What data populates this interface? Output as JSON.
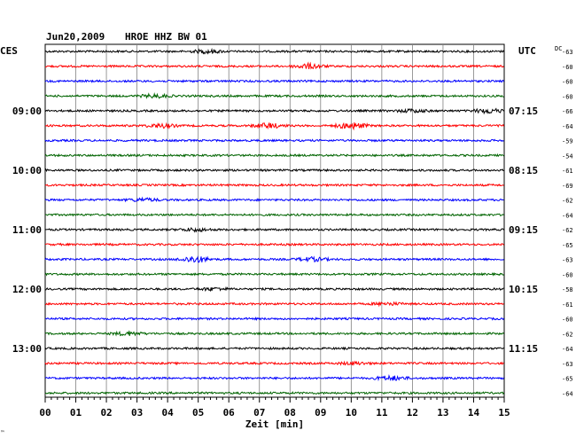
{
  "header": {
    "date": "Jun20,2009",
    "station": "HROE HHZ BW 01",
    "left_zone": "CES",
    "right_zone": "UTC",
    "dc_label": "DC"
  },
  "footer": {
    "xlabel": "Zeit [min]",
    "corner_mark": "™"
  },
  "colors": {
    "black": "#000000",
    "red": "#ff0000",
    "blue": "#0000ff",
    "green": "#006400",
    "grid": "#808080"
  },
  "chart_data": {
    "type": "line",
    "title": "Jun20,2009  HROE HHZ BW 01",
    "xlabel": "Zeit [min]",
    "x_range": [
      0,
      15
    ],
    "x_ticks": [
      "00",
      "01",
      "02",
      "03",
      "04",
      "05",
      "06",
      "07",
      "08",
      "09",
      "10",
      "11",
      "12",
      "13",
      "14",
      "15"
    ],
    "grid": true,
    "left_hour_labels": [
      "09:00",
      "10:00",
      "11:00",
      "12:00",
      "13:00"
    ],
    "right_hour_labels": [
      "07:15",
      "08:15",
      "09:15",
      "10:15",
      "11:15"
    ],
    "trace_colors": [
      "black",
      "red",
      "blue",
      "green",
      "black",
      "red",
      "blue",
      "green",
      "black",
      "red",
      "blue",
      "green",
      "black",
      "red",
      "blue",
      "green",
      "black",
      "red",
      "blue",
      "green",
      "black",
      "red",
      "blue",
      "green"
    ],
    "dc_offsets": [
      -63,
      -60,
      -60,
      -60,
      -66,
      -64,
      -59,
      -54,
      -61,
      -69,
      -62,
      -64,
      -62,
      -65,
      -63,
      -60,
      -58,
      -61,
      -60,
      -62,
      -64,
      -63,
      -65,
      -64
    ],
    "events": [
      {
        "trace": 0,
        "minute": 5.3,
        "amp": 1.8
      },
      {
        "trace": 1,
        "minute": 8.6,
        "amp": 2.6
      },
      {
        "trace": 3,
        "minute": 3.6,
        "amp": 1.8
      },
      {
        "trace": 4,
        "minute": 12.0,
        "amp": 1.6
      },
      {
        "trace": 4,
        "minute": 14.5,
        "amp": 2.4
      },
      {
        "trace": 5,
        "minute": 3.8,
        "amp": 2.0
      },
      {
        "trace": 5,
        "minute": 7.3,
        "amp": 2.6
      },
      {
        "trace": 5,
        "minute": 10.0,
        "amp": 3.4
      },
      {
        "trace": 10,
        "minute": 3.2,
        "amp": 1.6
      },
      {
        "trace": 12,
        "minute": 4.9,
        "amp": 1.6
      },
      {
        "trace": 14,
        "minute": 4.9,
        "amp": 3.4
      },
      {
        "trace": 14,
        "minute": 8.7,
        "amp": 2.0
      },
      {
        "trace": 16,
        "minute": 5.5,
        "amp": 1.4
      },
      {
        "trace": 17,
        "minute": 11.2,
        "amp": 1.4
      },
      {
        "trace": 19,
        "minute": 2.7,
        "amp": 1.8
      },
      {
        "trace": 21,
        "minute": 10.1,
        "amp": 1.4
      },
      {
        "trace": 22,
        "minute": 11.3,
        "amp": 2.4
      }
    ]
  }
}
